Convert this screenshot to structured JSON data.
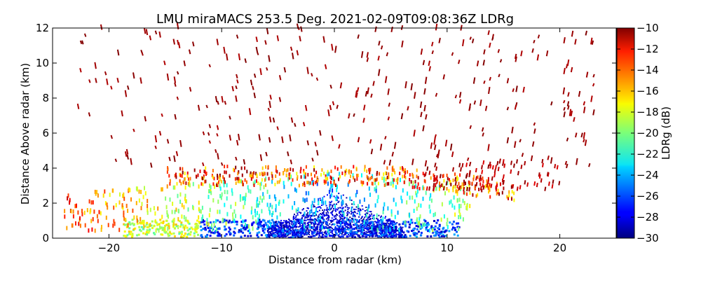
{
  "chart_data": {
    "type": "heatmap",
    "title": "LMU miraMACS 253.5 Deg. 2021-02-09T09:08:36Z  LDRg",
    "xlabel": "Distance from radar (km)",
    "ylabel": "Distance Above radar  (km)",
    "xlim": [
      -25,
      25
    ],
    "ylim": [
      0,
      12
    ],
    "xticks": [
      -20,
      -10,
      0,
      10,
      20
    ],
    "yticks": [
      0,
      2,
      4,
      6,
      8,
      10,
      12
    ],
    "colorbar": {
      "label": "LDRg (dB)",
      "range": [
        -30,
        -10
      ],
      "ticks": [
        -30,
        -28,
        -26,
        -24,
        -22,
        -20,
        -18,
        -16,
        -14,
        -12,
        -10
      ],
      "colormap": "jet"
    },
    "description_regions": [
      {
        "name": "dense low-LDR core",
        "x_range": [
          -3,
          3
        ],
        "y_range": [
          0,
          2.5
        ],
        "ldr_db": -30
      },
      {
        "name": "near-surface blue band",
        "x_range": [
          -18,
          10
        ],
        "y_range": [
          0,
          1
        ],
        "ldr_db": -27
      },
      {
        "name": "mixed layer",
        "x_range": [
          -24,
          12
        ],
        "y_range": [
          0.5,
          3.5
        ],
        "ldr_db": -22
      },
      {
        "name": "melting-layer band",
        "x_range": [
          -15,
          16
        ],
        "y_range": [
          3,
          4
        ],
        "ldr_db": -13
      },
      {
        "name": "sparse high-LDR streaks",
        "x_range": [
          -23,
          23
        ],
        "y_range": [
          4,
          12
        ],
        "ldr_db": -10
      }
    ]
  }
}
